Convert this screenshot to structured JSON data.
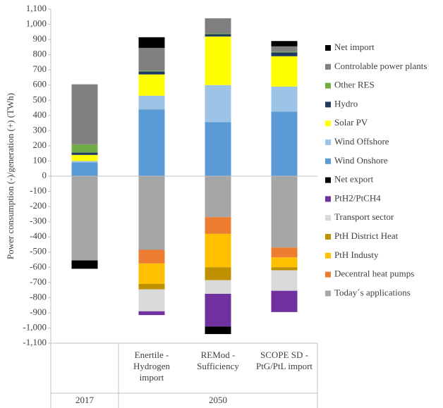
{
  "chart_data": {
    "type": "stacked_bar",
    "y_label": "Power consumption (-)/generation (+) (TWh)",
    "categories": [
      null,
      "Enertile - Hydrogen import",
      "REMod - Sufficiency",
      "SCOPE SD - PtG/PtL import"
    ],
    "groups": [
      {
        "name": "2017",
        "size": 1
      },
      {
        "name": "2050",
        "size": 3
      }
    ],
    "ylim": [
      -1100,
      1100
    ],
    "yticks": [
      {
        "value": 1100,
        "label": "1,100"
      },
      {
        "value": 1000,
        "label": "1,000"
      },
      900,
      800,
      700,
      600,
      500,
      400,
      300,
      200,
      100,
      0,
      -100,
      -200,
      -300,
      -400,
      -500,
      -600,
      -700,
      -800,
      -900,
      {
        "value": -1000,
        "label": "-1,000"
      },
      {
        "value": -1100,
        "label": "-1,100"
      }
    ],
    "legend": "right",
    "series": [
      {
        "name": "Net import",
        "color": "#000000",
        "values": [
          null,
          70,
          null,
          35
        ]
      },
      {
        "name": "Controlable power plants",
        "color": "#7f7f7f",
        "values": [
          395,
          150,
          100,
          35
        ]
      },
      {
        "name": "Other RES",
        "color": "#70ad47",
        "values": [
          55,
          5,
          5,
          5
        ]
      },
      {
        "name": "Hydro",
        "color": "#203864",
        "values": [
          15,
          20,
          15,
          25
        ]
      },
      {
        "name": "Solar PV",
        "color": "#ffff00",
        "values": [
          40,
          140,
          320,
          200
        ]
      },
      {
        "name": "Wind Offshore",
        "color": "#9dc3e6",
        "values": [
          10,
          90,
          245,
          165
        ]
      },
      {
        "name": "Wind Onshore",
        "color": "#5b9bd5",
        "values": [
          90,
          440,
          355,
          425
        ]
      },
      {
        "name": "Net export",
        "color": "#000000",
        "values": [
          -55,
          null,
          -50,
          null
        ]
      },
      {
        "name": "PtH2/PtCH4",
        "color": "#7030a0",
        "values": [
          null,
          -25,
          -215,
          -140
        ]
      },
      {
        "name": "Transport sector",
        "color": "#d9d9d9",
        "values": [
          null,
          -145,
          -90,
          -135
        ]
      },
      {
        "name": "PtH District Heat",
        "color": "#bf9000",
        "values": [
          null,
          -35,
          -85,
          -20
        ]
      },
      {
        "name": "PtH Industy",
        "color": "#ffc000",
        "values": [
          null,
          -135,
          -220,
          -65
        ]
      },
      {
        "name": "Decentral heat pumps",
        "color": "#ed7d31",
        "values": [
          null,
          -90,
          -110,
          -65
        ]
      },
      {
        "name": "Today´s applications",
        "color": "#a6a6a6",
        "values": [
          -555,
          -485,
          -270,
          -470
        ]
      }
    ]
  }
}
